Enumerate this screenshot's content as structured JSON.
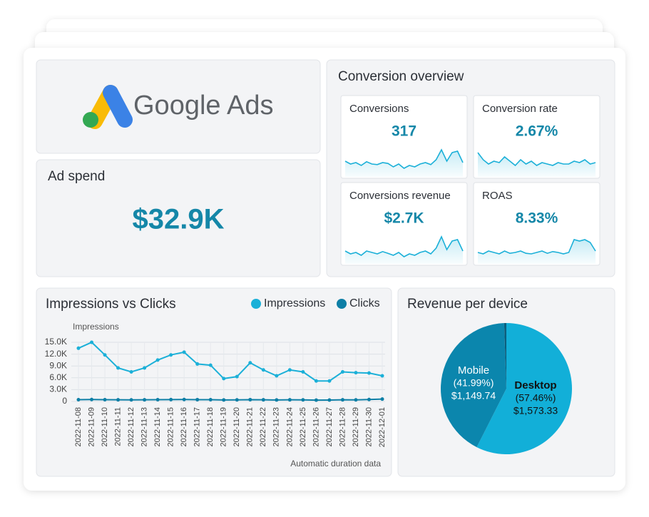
{
  "header": {
    "logo_text": "Google Ads"
  },
  "ad_spend": {
    "title": "Ad spend",
    "value": "$32.9K"
  },
  "conversion_overview": {
    "title": "Conversion overview",
    "cards": [
      {
        "title": "Conversions",
        "value": "317",
        "sparkline": [
          40,
          30,
          35,
          25,
          38,
          30,
          28,
          35,
          32,
          20,
          30,
          15,
          25,
          20,
          30,
          35,
          28,
          45,
          80,
          40,
          70,
          75,
          35
        ]
      },
      {
        "title": "Conversion rate",
        "value": "2.67%",
        "sparkline": [
          70,
          45,
          30,
          40,
          35,
          55,
          40,
          25,
          45,
          30,
          40,
          25,
          35,
          30,
          25,
          35,
          30,
          30,
          40,
          35,
          45,
          30,
          35
        ]
      },
      {
        "title": "Conversions revenue",
        "value": "$2.7K",
        "sparkline": [
          30,
          20,
          25,
          15,
          30,
          25,
          20,
          28,
          22,
          15,
          25,
          10,
          20,
          15,
          25,
          30,
          20,
          40,
          80,
          35,
          65,
          70,
          30
        ]
      },
      {
        "title": "ROAS",
        "value": "8.33%",
        "sparkline": [
          25,
          20,
          30,
          25,
          20,
          30,
          22,
          25,
          30,
          22,
          20,
          25,
          30,
          22,
          28,
          25,
          20,
          25,
          70,
          65,
          70,
          60,
          30
        ]
      }
    ]
  },
  "chart_data": [
    {
      "type": "line",
      "title": "Impressions vs Clicks",
      "y_label": "Impressions",
      "note": "Automatic duration data",
      "categories": [
        "2022-11-08",
        "2022-11-09",
        "2022-11-10",
        "2022-11-11",
        "2022-11-12",
        "2022-11-13",
        "2022-11-14",
        "2022-11-15",
        "2022-11-16",
        "2022-11-17",
        "2022-11-18",
        "2022-11-19",
        "2022-11-20",
        "2022-11-21",
        "2022-11-22",
        "2022-11-23",
        "2022-11-24",
        "2022-11-25",
        "2022-11-26",
        "2022-11-27",
        "2022-11-28",
        "2022-11-29",
        "2022-11-30",
        "2022-12-01"
      ],
      "series": [
        {
          "name": "Impressions",
          "color": "#1bb0d8",
          "values": [
            13500,
            15000,
            11800,
            8500,
            7500,
            8500,
            10500,
            11800,
            12500,
            9500,
            9200,
            5800,
            6300,
            9800,
            8000,
            6500,
            8000,
            7500,
            5200,
            5200,
            7500,
            7300,
            7200,
            6500
          ]
        },
        {
          "name": "Clicks",
          "color": "#0e7fa6",
          "values": [
            450,
            500,
            450,
            420,
            400,
            420,
            450,
            480,
            500,
            460,
            450,
            380,
            400,
            460,
            420,
            380,
            420,
            400,
            350,
            360,
            420,
            400,
            500,
            600
          ]
        }
      ],
      "ylim": [
        0,
        15000
      ],
      "yticks": [
        0,
        {
          "value": 3000,
          "label": "3.0K"
        },
        {
          "value": 6000,
          "label": "6.0K"
        },
        {
          "value": 9000,
          "label": "9.0K"
        },
        {
          "value": 12000,
          "label": "12.0K"
        },
        {
          "value": 15000,
          "label": "15.0K"
        }
      ],
      "grid": true,
      "legend": "top-right"
    },
    {
      "type": "pie",
      "title": "Revenue per device",
      "categories": [
        "Desktop",
        "Mobile",
        null
      ],
      "values": [
        57.46,
        41.99,
        0.55
      ],
      "value_labels": [
        "(57.46%)",
        "(41.99%)",
        null
      ],
      "revenue_labels": [
        "$1,573.33",
        "$1,149.74",
        null
      ],
      "colors": [
        "#12afd8",
        "#0b86ad",
        "#0a5f7e"
      ]
    }
  ]
}
